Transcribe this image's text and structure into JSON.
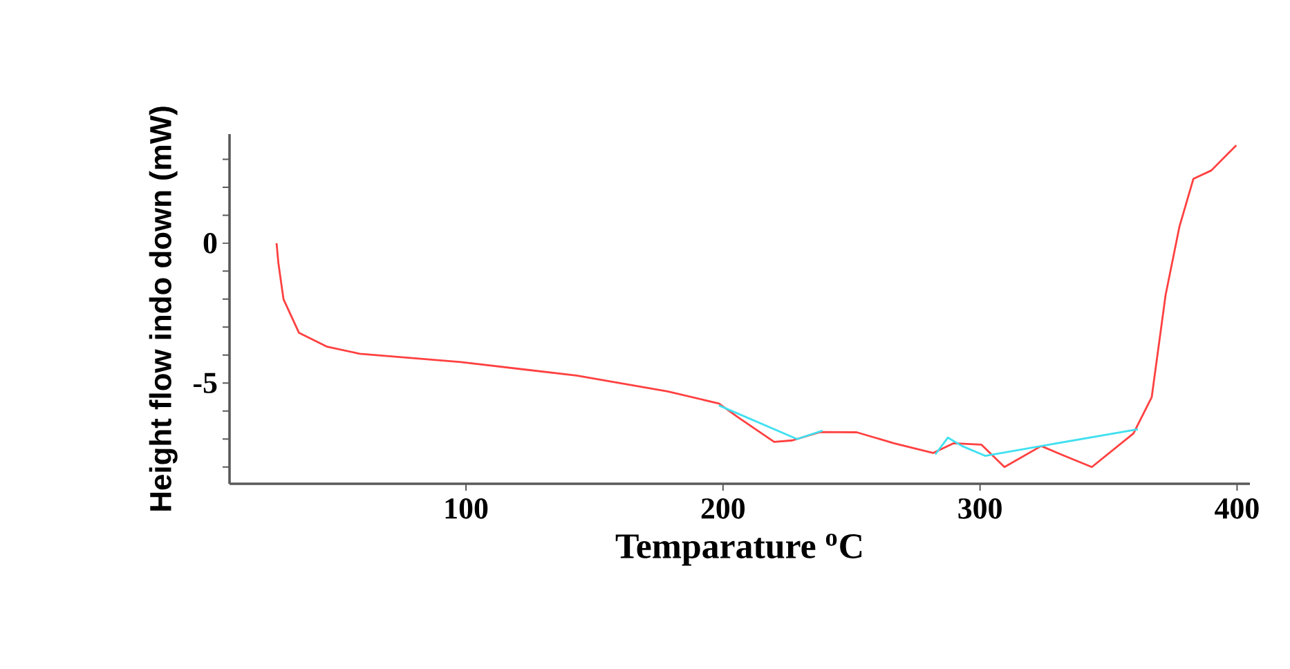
{
  "chart_data": {
    "type": "line",
    "xlabel": "Temparature $^{o}$C",
    "ylabel": "Height flow indo down (mW)",
    "xlim": [
      8,
      405
    ],
    "ylim": [
      -8.6,
      3.9
    ],
    "xticks": [
      100,
      200,
      300,
      400
    ],
    "yticks": [
      {
        "value": -8,
        "label": null
      },
      {
        "value": -7,
        "label": null
      },
      {
        "value": -6,
        "label": null
      },
      -5,
      {
        "value": -4,
        "label": null
      },
      {
        "value": -3,
        "label": null
      },
      {
        "value": -2,
        "label": null
      },
      {
        "value": -1,
        "label": null
      },
      0,
      {
        "value": 1,
        "label": null
      },
      {
        "value": 2,
        "label": null
      },
      {
        "value": 3,
        "label": null
      }
    ],
    "series": [
      {
        "color": "#ff4040",
        "x": [
          26.3,
          27,
          29,
          35,
          46,
          58.6,
          98,
          143,
          178.5,
          198.4,
          205.5,
          219.9,
          227,
          237.8,
          252,
          266.5,
          281.7,
          289.8,
          300.5,
          309.5,
          323.8,
          332.8,
          343.5,
          359.7,
          366.8,
          372.2,
          377.6,
          383,
          390,
          399.7
        ],
        "values": [
          0,
          -0.7,
          -2.0,
          -3.2,
          -3.7,
          -3.95,
          -4.25,
          -4.73,
          -5.3,
          -5.73,
          -6.2,
          -7.1,
          -7.05,
          -6.75,
          -6.76,
          -7.15,
          -7.5,
          -7.15,
          -7.2,
          -8.0,
          -7.25,
          -7.6,
          -8.0,
          -6.8,
          -5.5,
          -1.85,
          0.6,
          2.3,
          2.6,
          3.5
        ]
      },
      {
        "color": "#40e0f0",
        "x": [
          198.4,
          228.8,
          238.7,
          260,
          282.6,
          287.5,
          293,
          302,
          361.4
        ],
        "values": [
          -5.8,
          -7.0,
          -6.7,
          null,
          -7.55,
          -6.95,
          -7.25,
          -7.6,
          -6.65
        ]
      }
    ]
  }
}
